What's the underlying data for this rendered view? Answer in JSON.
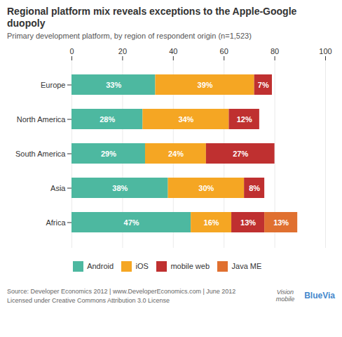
{
  "chart_data": {
    "type": "bar",
    "orientation": "horizontal",
    "stacked": true,
    "title": "Regional platform mix reveals exceptions to the Apple-Google duopoly",
    "subtitle": "Primary development platform, by region of respondent origin (n=1,523)",
    "categories": [
      "Europe",
      "North America",
      "South America",
      "Asia",
      "Africa"
    ],
    "series": [
      {
        "name": "Android",
        "color": "#4db8a0",
        "values": [
          33,
          28,
          29,
          38,
          47
        ],
        "value_labels": [
          "33%",
          "28%",
          "29%",
          "38%",
          "47%"
        ]
      },
      {
        "name": "iOS",
        "color": "#f5a623",
        "values": [
          39,
          34,
          24,
          30,
          16
        ],
        "value_labels": [
          "39%",
          "34%",
          "24%",
          "30%",
          "16%"
        ]
      },
      {
        "name": "mobile web",
        "color": "#bf3030",
        "values": [
          7,
          12,
          27,
          8,
          13
        ],
        "value_labels": [
          "7%",
          "12%",
          "27%",
          "8%",
          "13%"
        ]
      },
      {
        "name": "Java ME",
        "color": "#e07030",
        "values": [
          0,
          0,
          0,
          0,
          13
        ],
        "value_labels": [
          null,
          null,
          null,
          null,
          "13%"
        ]
      }
    ],
    "xlim": [
      0,
      100
    ],
    "xticks": [
      0,
      20,
      40,
      60,
      80,
      100
    ],
    "grid": true,
    "legend": "bottom",
    "data_labels": true,
    "annotations": [
      "Source: Developer Economics 2012 | www.DeveloperEconomics.com | June 2012",
      "Licensed under Creative Commons Attribution 3.0 License",
      "Vision\nmobile",
      "BlueVia"
    ]
  }
}
